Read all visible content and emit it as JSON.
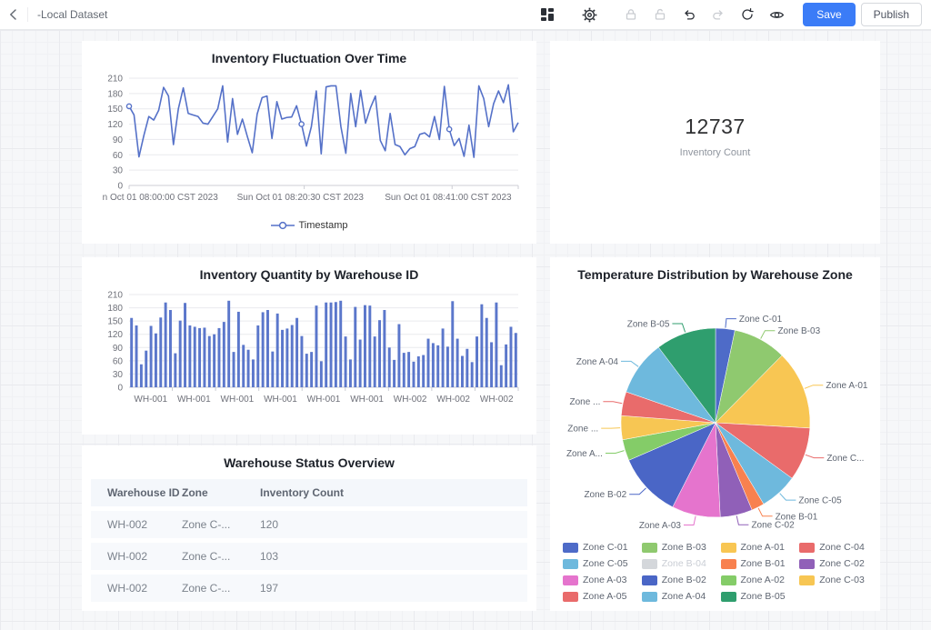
{
  "toolbar": {
    "title": "-Local Dataset",
    "save_label": "Save",
    "publish_label": "Publish",
    "accent_color": "#3b7cf7",
    "icons": [
      "chevron-left",
      "layout-grid",
      "gear",
      "lock",
      "unlock",
      "undo",
      "redo",
      "refresh",
      "eye"
    ]
  },
  "chart_data": [
    {
      "type": "line",
      "title": "Inventory Fluctuation Over Time",
      "ylim": [
        0,
        210
      ],
      "y_ticks": [
        0,
        30,
        60,
        90,
        120,
        150,
        180,
        210
      ],
      "x_tick_labels": [
        "n Oct 01 08:00:00 CST 2023",
        "Sun Oct 01 08:20:30 CST 2023",
        "Sun Oct 01 08:41:00 CST 2023"
      ],
      "grid": true,
      "legend_position": "bottom",
      "series": [
        {
          "name": "Timestamp",
          "color": "#5571c8",
          "values": [
            155,
            138,
            56,
            98,
            135,
            128,
            147,
            192,
            175,
            80,
            150,
            191,
            141,
            138,
            135,
            122,
            120,
            135,
            150,
            195,
            85,
            170,
            100,
            130,
            96,
            64,
            140,
            172,
            175,
            92,
            164,
            130,
            133,
            134,
            156,
            120,
            77,
            115,
            185,
            62,
            193,
            195,
            195,
            115,
            63,
            180,
            115,
            186,
            122,
            152,
            175,
            88,
            68,
            141,
            80,
            76,
            60,
            72,
            76,
            100,
            103,
            95,
            135,
            90,
            194,
            110,
            78,
            92,
            57,
            118,
            55,
            195,
            170,
            115,
            160,
            185,
            162,
            197,
            105,
            123
          ]
        }
      ],
      "marker_indexes": [
        0,
        35,
        65
      ]
    },
    {
      "type": "bar",
      "title": "Inventory Quantity by Warehouse ID",
      "ylim": [
        0,
        210
      ],
      "y_ticks": [
        0,
        30,
        60,
        90,
        120,
        150,
        180,
        210
      ],
      "x_tick_labels": [
        "WH-001",
        "WH-001",
        "WH-001",
        "WH-001",
        "WH-001",
        "WH-001",
        "WH-002",
        "WH-002",
        "WH-002"
      ],
      "bar_color": "#5b77cb",
      "grid": true,
      "values": [
        157,
        140,
        52,
        83,
        139,
        122,
        158,
        192,
        175,
        77,
        151,
        191,
        140,
        137,
        134,
        135,
        116,
        120,
        134,
        148,
        196,
        80,
        171,
        96,
        85,
        63,
        140,
        170,
        175,
        81,
        167,
        130,
        133,
        141,
        157,
        116,
        76,
        80,
        185,
        59,
        192,
        192,
        193,
        196,
        115,
        63,
        182,
        108,
        186,
        185,
        115,
        152,
        175,
        90,
        62,
        143,
        78,
        80,
        58,
        70,
        73,
        110,
        100,
        95,
        133,
        92,
        195,
        110,
        71,
        87,
        57,
        115,
        188,
        157,
        102,
        192,
        50,
        97,
        137,
        123
      ]
    },
    {
      "type": "pie",
      "title": "Temperature Distribution by Warehouse Zone",
      "legend_position": "bottom",
      "slices": [
        {
          "name": "Zone C-01",
          "label": "Zone C-01",
          "value": 3.3,
          "color": "#4e6bc8"
        },
        {
          "name": "Zone B-03",
          "label": "Zone B-03",
          "value": 9.1,
          "color": "#8fc96f"
        },
        {
          "name": "Zone A-01",
          "label": "Zone A-01",
          "value": 13.5,
          "color": "#f8c653"
        },
        {
          "name": "Zone C-04",
          "label": "Zone C...",
          "value": 9.1,
          "color": "#e96b6b"
        },
        {
          "name": "Zone C-05",
          "label": "Zone C-05",
          "value": 6.5,
          "color": "#6eb9dd"
        },
        {
          "name": "Zone B-01",
          "label": "Zone B-01",
          "value": 2.2,
          "color": "#f8814f"
        },
        {
          "name": "Zone C-02",
          "label": "Zone C-02",
          "value": 5.5,
          "color": "#9060b8"
        },
        {
          "name": "Zone A-03",
          "label": "Zone A-03",
          "value": 8.3,
          "color": "#e574cd"
        },
        {
          "name": "Zone B-02",
          "label": "Zone B-02",
          "value": 11.0,
          "color": "#4a66c6"
        },
        {
          "name": "Zone A-02",
          "label": "Zone A...",
          "value": 3.6,
          "color": "#84cc68"
        },
        {
          "name": "Zone C-03",
          "label": "Zone ...",
          "value": 4.1,
          "color": "#f7c653"
        },
        {
          "name": "Zone A-05",
          "label": "Zone ...",
          "value": 4.1,
          "color": "#e96b6b"
        },
        {
          "name": "Zone A-04",
          "label": "Zone A-04",
          "value": 9.4,
          "color": "#6eb9dd"
        },
        {
          "name": "Zone B-05",
          "label": "Zone B-05",
          "value": 10.3,
          "color": "#2f9e6e"
        }
      ],
      "legend": [
        {
          "name": "Zone C-01",
          "color": "#4e6bc8",
          "disabled": false
        },
        {
          "name": "Zone B-03",
          "color": "#8fc96f",
          "disabled": false
        },
        {
          "name": "Zone A-01",
          "color": "#f8c653",
          "disabled": false
        },
        {
          "name": "Zone C-04",
          "color": "#e96b6b",
          "disabled": false
        },
        {
          "name": "Zone C-05",
          "color": "#6eb9dd",
          "disabled": false
        },
        {
          "name": "Zone B-04",
          "color": "#d4d7db",
          "disabled": true
        },
        {
          "name": "Zone B-01",
          "color": "#f8814f",
          "disabled": false
        },
        {
          "name": "Zone C-02",
          "color": "#9060b8",
          "disabled": false
        },
        {
          "name": "Zone A-03",
          "color": "#e574cd",
          "disabled": false
        },
        {
          "name": "Zone B-02",
          "color": "#4a66c6",
          "disabled": false
        },
        {
          "name": "Zone A-02",
          "color": "#84cc68",
          "disabled": false
        },
        {
          "name": "Zone C-03",
          "color": "#f7c653",
          "disabled": false
        },
        {
          "name": "Zone A-05",
          "color": "#e96b6b",
          "disabled": false
        },
        {
          "name": "Zone A-04",
          "color": "#6eb9dd",
          "disabled": false
        },
        {
          "name": "Zone B-05",
          "color": "#2f9e6e",
          "disabled": false
        }
      ]
    },
    {
      "type": "indicator",
      "value": "12737",
      "label": "Inventory Count"
    },
    {
      "type": "table",
      "title": "Warehouse Status Overview",
      "columns": [
        "Warehouse ID",
        "Zone",
        "Inventory Count"
      ],
      "rows": [
        [
          "WH-002",
          "Zone C-...",
          "120"
        ],
        [
          "WH-002",
          "Zone C-...",
          "103"
        ],
        [
          "WH-002",
          "Zone C-...",
          "197"
        ]
      ]
    }
  ]
}
